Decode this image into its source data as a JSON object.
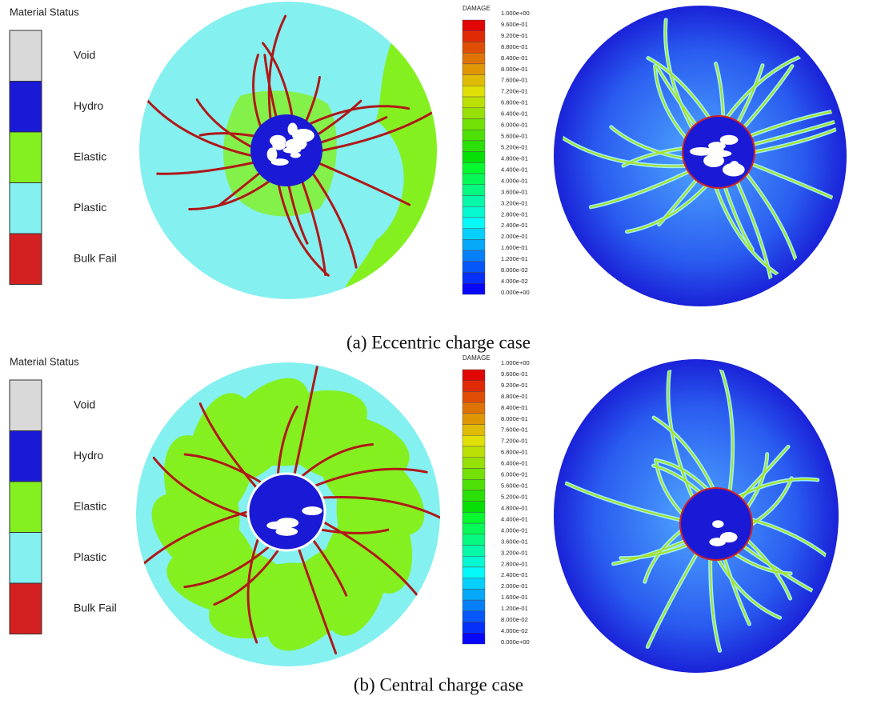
{
  "panels": [
    {
      "legend_title": "Material Status",
      "legend": [
        "Void",
        "Hydro",
        "Elastic",
        "Plastic",
        "Bulk Fail"
      ],
      "colorbar_title": "DAMAGE",
      "colorbar_labels": [
        "1.000e+00",
        "9.600e-01",
        "9.200e-01",
        "8.800e-01",
        "8.400e-01",
        "8.000e-01",
        "7.600e-01",
        "7.200e-01",
        "6.800e-01",
        "6.400e-01",
        "6.000e-01",
        "5.600e-01",
        "5.200e-01",
        "4.800e-01",
        "4.400e-01",
        "4.000e-01",
        "3.600e-01",
        "3.200e-01",
        "2.800e-01",
        "2.400e-01",
        "2.000e-01",
        "1.600e-01",
        "1.200e-01",
        "8.000e-02",
        "4.000e-02",
        "0.000e+00"
      ],
      "caption": "(a) Eccentric charge case"
    },
    {
      "legend_title": "Material Status",
      "legend": [
        "Void",
        "Hydro",
        "Elastic",
        "Plastic",
        "Bulk Fail"
      ],
      "colorbar_title": "DAMAGE",
      "colorbar_labels": [
        "1.000e+00",
        "9.600e-01",
        "9.200e-01",
        "8.800e-01",
        "8.400e-01",
        "8.000e-01",
        "7.600e-01",
        "7.200e-01",
        "6.800e-01",
        "6.400e-01",
        "6.000e-01",
        "5.600e-01",
        "5.200e-01",
        "4.800e-01",
        "4.400e-01",
        "4.000e-01",
        "3.600e-01",
        "3.200e-01",
        "2.800e-01",
        "2.400e-01",
        "2.000e-01",
        "1.600e-01",
        "1.200e-01",
        "8.000e-02",
        "4.000e-02",
        "0.000e+00"
      ],
      "caption": "(b) Central charge case"
    }
  ]
}
